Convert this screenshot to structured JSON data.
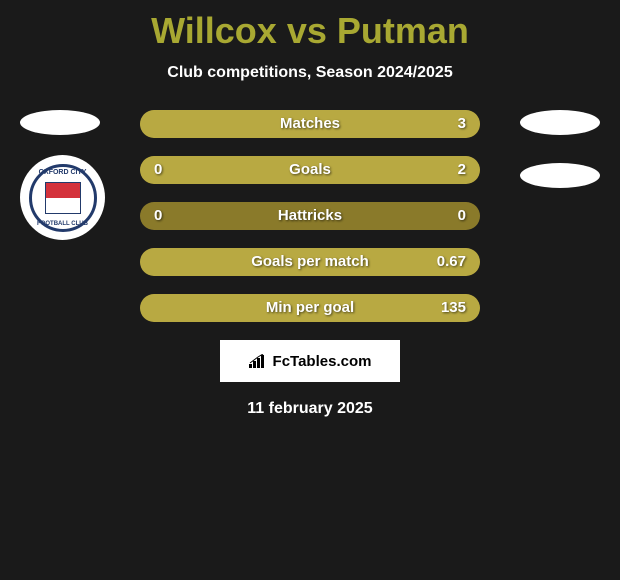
{
  "title": "Willcox vs Putman",
  "subtitle": "Club competitions, Season 2024/2025",
  "club_badge": {
    "name": "Oxford City Football Club",
    "text_top": "OXFORD CITY",
    "text_bottom": "FOOTBALL CLUB",
    "outer_color": "#ffffff",
    "ring_color": "#223a6b"
  },
  "colors": {
    "background": "#1a1a1a",
    "title": "#a8a832",
    "bar_empty": "#8a7a2a",
    "bar_fill": "#b8a942",
    "ellipse": "#ffffff"
  },
  "stats": [
    {
      "label": "Matches",
      "left_value": "",
      "right_value": "3",
      "left_pct": 0,
      "right_pct": 100,
      "show_left": false
    },
    {
      "label": "Goals",
      "left_value": "0",
      "right_value": "2",
      "left_pct": 0,
      "right_pct": 100,
      "show_left": true
    },
    {
      "label": "Hattricks",
      "left_value": "0",
      "right_value": "0",
      "left_pct": 0,
      "right_pct": 0,
      "show_left": true
    },
    {
      "label": "Goals per match",
      "left_value": "",
      "right_value": "0.67",
      "left_pct": 0,
      "right_pct": 100,
      "show_left": false
    },
    {
      "label": "Min per goal",
      "left_value": "",
      "right_value": "135",
      "left_pct": 0,
      "right_pct": 100,
      "show_left": false
    }
  ],
  "footer": {
    "brand": "FcTables.com"
  },
  "date": "11 february 2025"
}
